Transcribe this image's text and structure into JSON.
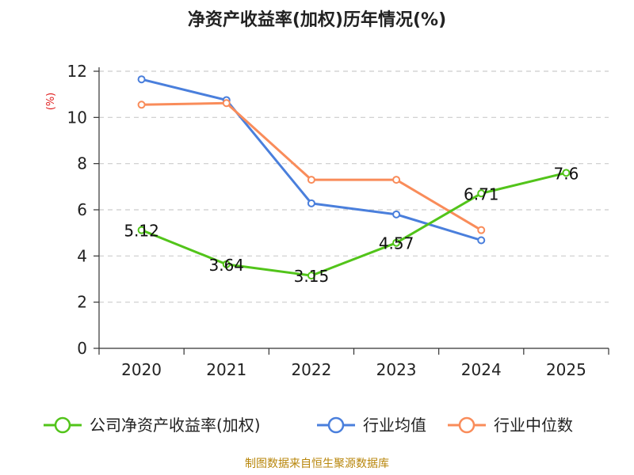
{
  "chart_data": {
    "type": "line",
    "title": "净资产收益率(加权)历年情况(%)",
    "ylabel": "(%)",
    "xlabel": "",
    "categories": [
      "2020",
      "2021",
      "2022",
      "2023",
      "2024",
      "2025"
    ],
    "ylim": [
      0,
      12
    ],
    "yticks": [
      0,
      2,
      4,
      6,
      8,
      10,
      12
    ],
    "grid": true,
    "legend_position": "bottom",
    "series": [
      {
        "name": "公司净资产收益率(加权)",
        "color": "#52c41a",
        "values": [
          5.12,
          3.64,
          3.15,
          4.57,
          6.71,
          7.6
        ],
        "labels": [
          "5.12",
          "3.64",
          "3.15",
          "4.57",
          "6.71",
          "7.6"
        ]
      },
      {
        "name": "行业均值",
        "color": "#4a7fdc",
        "values": [
          11.65,
          10.75,
          6.28,
          5.8,
          4.68,
          null
        ]
      },
      {
        "name": "行业中位数",
        "color": "#f98c5a",
        "values": [
          10.55,
          10.62,
          7.3,
          7.3,
          5.12,
          null
        ]
      }
    ]
  },
  "footer": {
    "source": "制图数据来自恒生聚源数据库"
  }
}
